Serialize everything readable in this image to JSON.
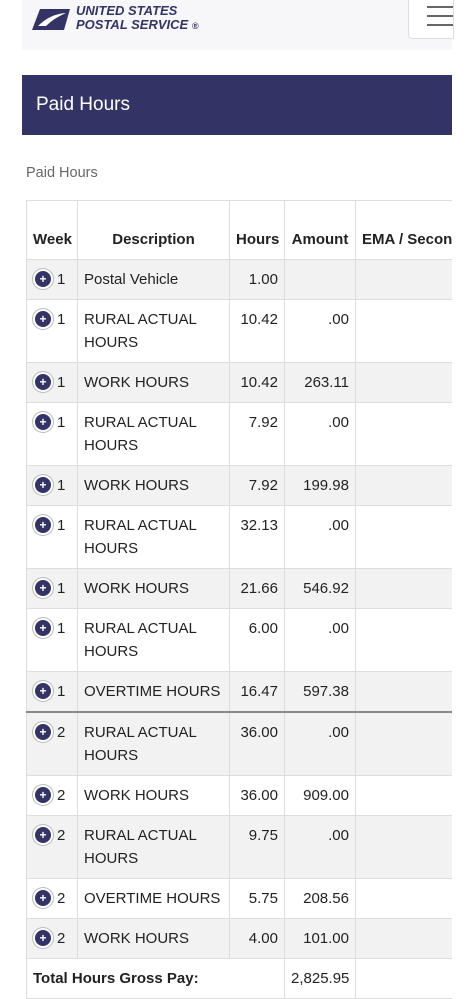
{
  "header": {
    "logo_line1": "UNITED STATES",
    "logo_line2": "POSTAL SERVICE",
    "registered": "®"
  },
  "banner_title": "Paid Hours",
  "section_label": "Paid Hours",
  "table": {
    "columns": [
      "Week",
      "Description",
      "Hours",
      "Amount",
      "EMA / Second Trip"
    ],
    "rows": [
      [
        1,
        "Postal Vehicle",
        "1.00",
        null
      ],
      [
        1,
        "RURAL ACTUAL HOURS",
        "10.42",
        ".00"
      ],
      [
        1,
        "WORK HOURS",
        "10.42",
        "263.11"
      ],
      [
        1,
        "RURAL ACTUAL HOURS",
        "7.92",
        ".00"
      ],
      [
        1,
        "WORK HOURS",
        "7.92",
        "199.98"
      ],
      [
        1,
        "RURAL ACTUAL HOURS",
        "32.13",
        ".00"
      ],
      [
        1,
        "WORK HOURS",
        "21.66",
        "546.92"
      ],
      [
        1,
        "RURAL ACTUAL HOURS",
        "6.00",
        ".00"
      ],
      [
        1,
        "OVERTIME HOURS",
        "16.47",
        "597.38"
      ],
      [
        2,
        "RURAL ACTUAL HOURS",
        "36.00",
        ".00"
      ],
      [
        2,
        "WORK HOURS",
        "36.00",
        "909.00"
      ],
      [
        2,
        "RURAL ACTUAL HOURS",
        "9.75",
        ".00"
      ],
      [
        2,
        "OVERTIME HOURS",
        "5.75",
        "208.56"
      ],
      [
        2,
        "WORK HOURS",
        "4.00",
        "101.00"
      ]
    ],
    "total": {
      "label": "Total Hours Gross Pay:",
      "amount": "2,825.95"
    }
  }
}
